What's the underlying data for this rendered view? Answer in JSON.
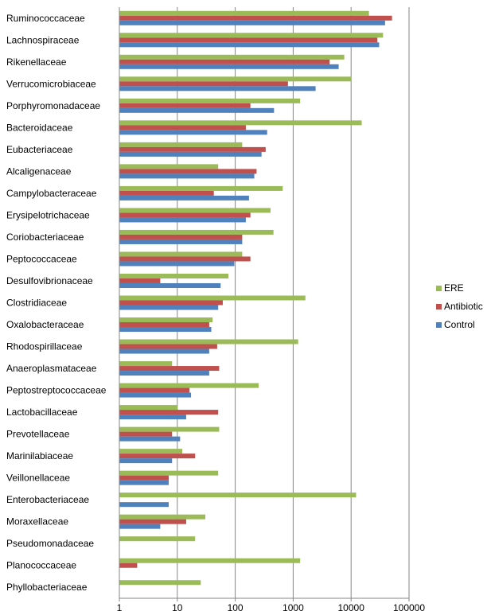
{
  "chart_data": {
    "type": "bar",
    "orientation": "horizontal",
    "x_scale": "log",
    "xlim": [
      1,
      100000
    ],
    "x_ticks": [
      "1",
      "10",
      "100",
      "1000",
      "10000",
      "100000"
    ],
    "grid": "vertical major gridlines",
    "legend_position": "right",
    "categories": [
      "Ruminococcaceae",
      "Lachnospiraceae",
      "Rikenellaceae",
      "Verrucomicrobiaceae",
      "Porphyromonadaceae",
      "Bacteroidaceae",
      "Eubacteriaceae",
      "Alcaligenaceae",
      "Campylobacteraceae",
      "Erysipelotrichaceae",
      "Coriobacteriaceae",
      "Peptococcaceae",
      "Desulfovibrionaceae",
      "Clostridiaceae",
      "Oxalobacteraceae",
      "Rhodospirillaceae",
      "Anaeroplasmataceae",
      "Peptostreptococcaceae",
      "Lactobacillaceae",
      "Prevotellaceae",
      "Marinilabiaceae",
      "Veillonellaceae",
      "Enterobacteriaceae",
      "Moraxellaceae",
      "Pseudomonadaceae",
      "Planococcaceae",
      "Phyllobacteriaceae"
    ],
    "series": [
      {
        "name": "ERE",
        "color": "#9BBB59",
        "values": [
          20000,
          35000,
          7500,
          10000,
          1300,
          15000,
          130,
          50,
          650,
          400,
          450,
          130,
          75,
          1600,
          40,
          1200,
          8,
          250,
          10,
          52,
          12,
          50,
          12000,
          30,
          20,
          1300,
          25
        ]
      },
      {
        "name": "Antibiotic",
        "color": "#C0504D",
        "values": [
          50000,
          28000,
          4200,
          800,
          180,
          150,
          330,
          230,
          42,
          180,
          130,
          180,
          5,
          60,
          35,
          48,
          52,
          16,
          50,
          8,
          20,
          7,
          null,
          14,
          null,
          2,
          null
        ]
      },
      {
        "name": "Control",
        "color": "#4F81BD",
        "values": [
          38000,
          30000,
          6000,
          2400,
          460,
          350,
          280,
          210,
          170,
          150,
          130,
          95,
          55,
          50,
          38,
          35,
          35,
          17,
          14,
          11,
          8,
          7,
          7,
          5,
          null,
          null,
          null
        ]
      }
    ]
  }
}
